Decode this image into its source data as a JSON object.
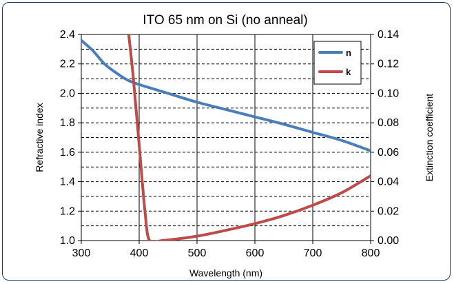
{
  "chart_data": {
    "type": "line",
    "title": "ITO 65 nm on Si (no anneal)",
    "xlabel": "Wavelength (nm)",
    "ylabel": "Refractive index",
    "y2label": "Extinction coefficient",
    "xlim": [
      300,
      800
    ],
    "ylim": [
      1.0,
      2.4
    ],
    "y2lim": [
      0.0,
      0.14
    ],
    "x_ticks": [
      "300",
      "400",
      "500",
      "600",
      "700",
      "800"
    ],
    "y_ticks": [
      "1.0",
      "1.2",
      "1.4",
      "1.6",
      "1.8",
      "2.0",
      "2.2",
      "2.4"
    ],
    "y2_ticks": [
      "0.00",
      "0.02",
      "0.04",
      "0.06",
      "0.08",
      "0.10",
      "0.12",
      "0.14"
    ],
    "grid": {
      "vertical": "solid",
      "horizontal": "dashed"
    },
    "legend_position": "top-right",
    "series": [
      {
        "name": "n",
        "axis": "left",
        "color": "#4a7ebb",
        "x": [
          300,
          320,
          340,
          360,
          380,
          400,
          450,
          500,
          550,
          600,
          650,
          700,
          750,
          800
        ],
        "y": [
          2.36,
          2.29,
          2.2,
          2.14,
          2.09,
          2.06,
          2.0,
          1.94,
          1.89,
          1.84,
          1.79,
          1.735,
          1.68,
          1.61
        ]
      },
      {
        "name": "k",
        "axis": "right",
        "color": "#be4b48",
        "x": [
          382,
          390,
          400,
          410,
          418,
          440,
          500,
          550,
          600,
          650,
          700,
          750,
          800
        ],
        "y": [
          0.14,
          0.11,
          0.065,
          0.02,
          0.0,
          0.0,
          0.003,
          0.007,
          0.0115,
          0.017,
          0.024,
          0.0325,
          0.044
        ]
      }
    ]
  }
}
